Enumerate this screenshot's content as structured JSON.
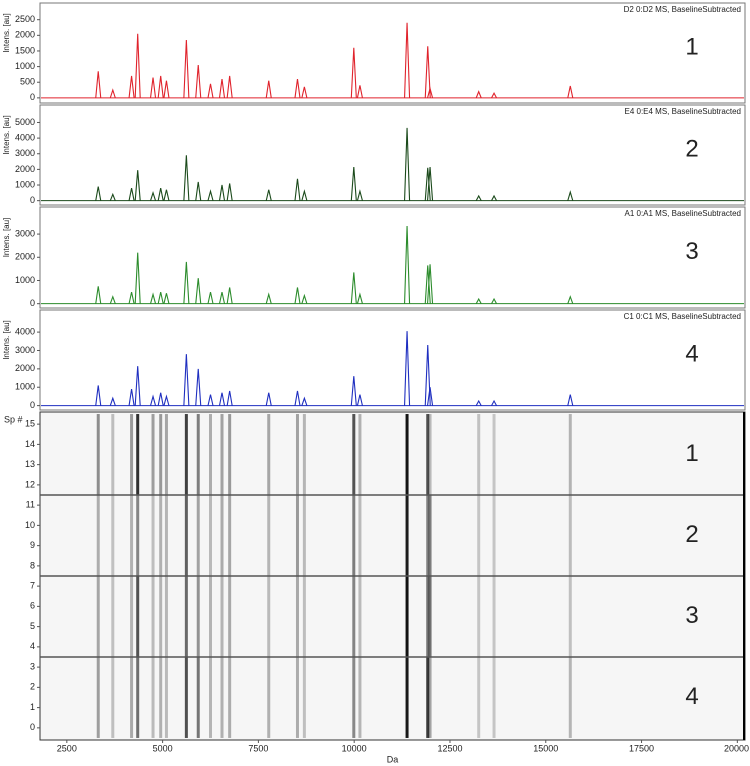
{
  "chart_data": [
    {
      "type": "spectrum",
      "title": "D2 0:D2 MS, BaselineSubtracted",
      "ylabel": "Intens. [au]",
      "label": "1",
      "color": "#e0232c",
      "x": [
        3320,
        3700,
        4190,
        4350,
        4750,
        4950,
        5100,
        5620,
        5930,
        6250,
        6550,
        6750,
        7770,
        8520,
        8700,
        9990,
        10150,
        11380,
        11920,
        11980,
        13250,
        13650,
        15640
      ],
      "values": [
        850,
        250,
        700,
        2050,
        650,
        700,
        550,
        1850,
        1050,
        450,
        600,
        700,
        550,
        600,
        350,
        1600,
        400,
        2400,
        1650,
        300,
        200,
        150,
        380
      ],
      "xlim": [
        1800,
        20200
      ],
      "ylim": [
        -100,
        2650
      ],
      "yticks": [
        0,
        500,
        1000,
        1500,
        2000,
        2500
      ]
    },
    {
      "type": "spectrum",
      "title": "E4 0:E4 MS, BaselineSubtracted",
      "ylabel": "Intens. [au]",
      "label": "2",
      "color": "#1b4a1b",
      "x": [
        3320,
        3700,
        4190,
        4350,
        4750,
        4950,
        5100,
        5620,
        5930,
        6250,
        6550,
        6750,
        7770,
        8520,
        8700,
        9990,
        10150,
        11380,
        11920,
        11980,
        13250,
        13650,
        15640
      ],
      "values": [
        900,
        400,
        800,
        1950,
        500,
        800,
        700,
        2900,
        1200,
        600,
        1000,
        1100,
        700,
        1400,
        600,
        2150,
        600,
        4650,
        2100,
        2150,
        300,
        300,
        550
      ],
      "xlim": [
        1800,
        20200
      ],
      "ylim": [
        -150,
        5350
      ],
      "yticks": [
        0,
        1000,
        2000,
        3000,
        4000,
        5000
      ]
    },
    {
      "type": "spectrum",
      "title": "A1 0:A1 MS, BaselineSubtracted",
      "ylabel": "Intens. [au]",
      "label": "3",
      "color": "#2c8c2c",
      "x": [
        3320,
        3700,
        4190,
        4350,
        4750,
        4950,
        5100,
        5620,
        5930,
        6250,
        6550,
        6750,
        7770,
        8520,
        8700,
        9990,
        10150,
        11380,
        11920,
        11980,
        13250,
        13650,
        15640
      ],
      "values": [
        750,
        300,
        500,
        2200,
        400,
        500,
        450,
        1800,
        1100,
        500,
        500,
        700,
        400,
        700,
        350,
        1350,
        400,
        3350,
        1650,
        1700,
        200,
        200,
        300
      ],
      "xlim": [
        1800,
        20200
      ],
      "ylim": [
        -100,
        3650
      ],
      "yticks": [
        0,
        1000,
        2000,
        3000
      ]
    },
    {
      "type": "spectrum",
      "title": "C1 0:C1 MS, BaselineSubtracted",
      "ylabel": "Intens. [au]",
      "label": "4",
      "color": "#1f2fc0",
      "x": [
        3320,
        3700,
        4190,
        4350,
        4750,
        4950,
        5100,
        5620,
        5930,
        6250,
        6550,
        6750,
        7770,
        8520,
        8700,
        9990,
        10150,
        11380,
        11920,
        11980,
        13250,
        13650,
        15640
      ],
      "values": [
        1100,
        400,
        900,
        2150,
        500,
        700,
        500,
        2800,
        2000,
        600,
        700,
        800,
        700,
        800,
        400,
        1600,
        600,
        4050,
        3300,
        1000,
        250,
        250,
        600
      ],
      "xlim": [
        1800,
        20200
      ],
      "ylim": [
        -130,
        4550
      ],
      "yticks": [
        0,
        1000,
        2000,
        3000,
        4000
      ]
    },
    {
      "type": "heatmap",
      "ylabel": "Sp #",
      "xlabel": "Da",
      "xlim": [
        1800,
        20200
      ],
      "xticks": [
        2500,
        5000,
        7500,
        10000,
        12500,
        15000,
        17500,
        20000
      ],
      "ylim": [
        -0.6,
        15.6
      ],
      "yticks": [
        0,
        1,
        2,
        3,
        4,
        5,
        6,
        7,
        8,
        9,
        10,
        11,
        12,
        13,
        14,
        15
      ],
      "separators": [
        3.5,
        7.5,
        11.5
      ],
      "groups": [
        {
          "label": "1",
          "rows": [
            12,
            15
          ]
        },
        {
          "label": "2",
          "rows": [
            8,
            11
          ]
        },
        {
          "label": "3",
          "rows": [
            4,
            7
          ]
        },
        {
          "label": "4",
          "rows": [
            0,
            3
          ]
        }
      ]
    }
  ]
}
